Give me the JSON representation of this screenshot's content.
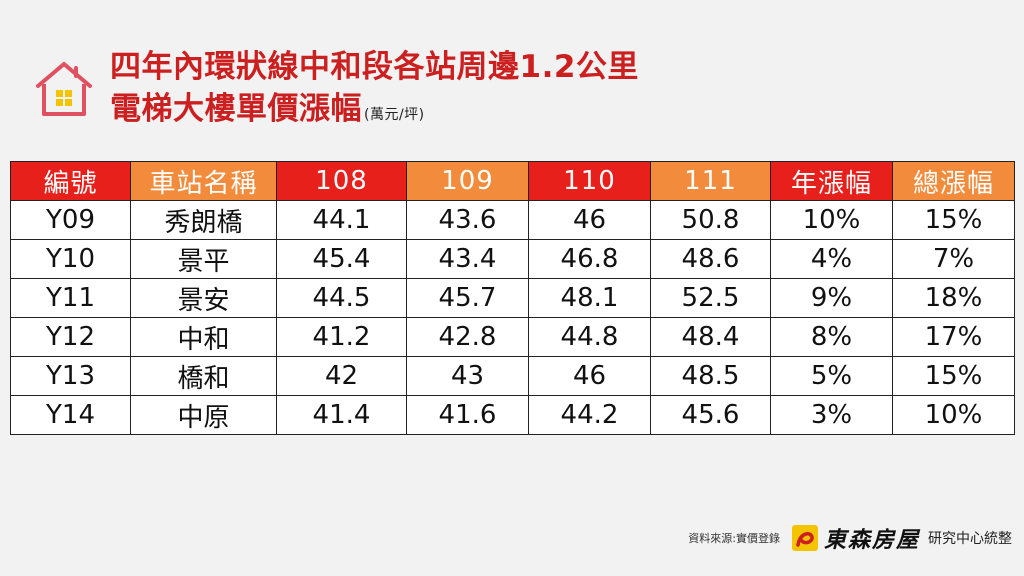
{
  "title": {
    "line1": "四年內環狀線中和段各站周邊1.2公里",
    "line2": "電梯大樓單價漲幅",
    "unit": "(萬元/坪)"
  },
  "table": {
    "headers": [
      "編號",
      "車站名稱",
      "108",
      "109",
      "110",
      "111",
      "年漲幅",
      "總漲幅"
    ],
    "rows": [
      [
        "Y09",
        "秀朗橋",
        "44.1",
        "43.6",
        "46",
        "50.8",
        "10%",
        "15%"
      ],
      [
        "Y10",
        "景平",
        "45.4",
        "43.4",
        "46.8",
        "48.6",
        "4%",
        "7%"
      ],
      [
        "Y11",
        "景安",
        "44.5",
        "45.7",
        "48.1",
        "52.5",
        "9%",
        "18%"
      ],
      [
        "Y12",
        "中和",
        "41.2",
        "42.8",
        "44.8",
        "48.4",
        "8%",
        "17%"
      ],
      [
        "Y13",
        "橋和",
        "42",
        "43",
        "46",
        "48.5",
        "5%",
        "15%"
      ],
      [
        "Y14",
        "中原",
        "41.4",
        "41.6",
        "44.2",
        "45.6",
        "3%",
        "10%"
      ]
    ]
  },
  "footer": {
    "source": "資料來源:實價登錄",
    "brand": "東森房屋",
    "dept": "研究中心統整"
  },
  "colors": {
    "title": "#cc1f1f",
    "header_red": "#e8201c",
    "header_orange": "#f28c3c",
    "house_icon": "#e05060",
    "house_window": "#f5c400"
  },
  "icons": [
    "house-icon",
    "brand-logo-icon"
  ]
}
